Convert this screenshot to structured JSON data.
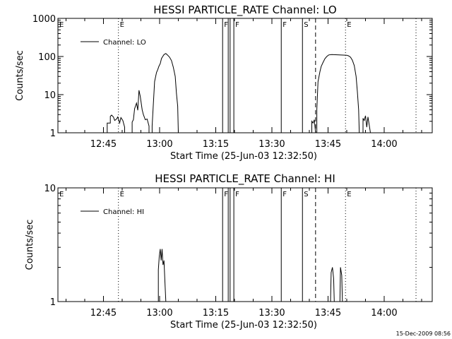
{
  "footer_date": "15-Dec-2009 08:56",
  "chart_data": [
    {
      "type": "line",
      "title": "HESSI PARTICLE_RATE Channel: LO",
      "xlabel": "Start Time (25-Jun-03 12:32:50)",
      "ylabel": "Counts/sec",
      "yscale": "log",
      "xlim": [
        "12:32:50",
        "14:12:50"
      ],
      "ylim": [
        1,
        1000
      ],
      "x_ticks": [
        "12:45",
        "13:00",
        "13:15",
        "13:30",
        "13:45",
        "14:00"
      ],
      "y_ticks": [
        "1",
        "10",
        "100",
        "1000"
      ],
      "legend": {
        "position": "top-left",
        "entries": [
          "Channel: LO"
        ]
      },
      "series": [
        {
          "name": "Channel: LO",
          "points": [
            [
              "12:46:00",
              1
            ],
            [
              "12:46:00",
              1.8
            ],
            [
              "12:46:50",
              1.8
            ],
            [
              "12:46:50",
              2.7
            ],
            [
              "12:47:10",
              2.9
            ],
            [
              "12:47:40",
              2.6
            ],
            [
              "12:48:00",
              2.1
            ],
            [
              "12:48:30",
              2.3
            ],
            [
              "12:48:50",
              2.6
            ],
            [
              "12:49:20",
              1.8
            ],
            [
              "12:49:40",
              2.5
            ],
            [
              "12:50:10",
              2.1
            ],
            [
              "12:50:40",
              1.4
            ],
            [
              "12:50:40",
              1
            ],
            [
              "12:52:40",
              1
            ],
            [
              "12:52:40",
              1.9
            ],
            [
              "12:53:00",
              2.2
            ],
            [
              "12:53:20",
              4.3
            ],
            [
              "12:53:50",
              6
            ],
            [
              "12:54:10",
              3.9
            ],
            [
              "12:54:30",
              13
            ],
            [
              "12:54:50",
              9
            ],
            [
              "12:55:20",
              4
            ],
            [
              "12:55:40",
              3
            ],
            [
              "12:56:10",
              2.2
            ],
            [
              "12:56:40",
              2.3
            ],
            [
              "12:57:10",
              1.5
            ],
            [
              "12:57:10",
              1
            ],
            [
              "12:58:00",
              1
            ],
            [
              "12:58:00",
              1.5
            ],
            [
              "12:58:20",
              6
            ],
            [
              "12:58:40",
              22
            ],
            [
              "12:59:10",
              38
            ],
            [
              "12:59:30",
              45
            ],
            [
              "12:59:50",
              56
            ],
            [
              "13:00:10",
              65
            ],
            [
              "13:00:30",
              88
            ],
            [
              "13:00:50",
              100
            ],
            [
              "13:01:10",
              112
            ],
            [
              "13:01:40",
              120
            ],
            [
              "13:02:10",
              108
            ],
            [
              "13:02:40",
              96
            ],
            [
              "13:03:10",
              78
            ],
            [
              "13:03:40",
              52
            ],
            [
              "13:04:10",
              30
            ],
            [
              "13:04:30",
              11
            ],
            [
              "13:04:50",
              5
            ],
            [
              "13:05:00",
              1
            ],
            [
              "13:40:40",
              1
            ],
            [
              "13:40:40",
              2
            ],
            [
              "13:41:00",
              1.8
            ],
            [
              "13:41:20",
              2.2
            ],
            [
              "13:41:40",
              1
            ],
            [
              "13:42:00",
              1
            ],
            [
              "13:42:00",
              4
            ],
            [
              "13:42:20",
              22
            ],
            [
              "13:42:50",
              40
            ],
            [
              "13:43:10",
              55
            ],
            [
              "13:43:40",
              70
            ],
            [
              "13:44:10",
              88
            ],
            [
              "13:44:40",
              100
            ],
            [
              "13:45:10",
              110
            ],
            [
              "13:46:00",
              112
            ],
            [
              "13:48:00",
              110
            ],
            [
              "13:50:00",
              108
            ],
            [
              "13:50:30",
              104
            ],
            [
              "13:51:00",
              96
            ],
            [
              "13:51:30",
              80
            ],
            [
              "13:52:00",
              58
            ],
            [
              "13:52:30",
              30
            ],
            [
              "13:52:50",
              12
            ],
            [
              "13:53:10",
              4
            ],
            [
              "13:53:20",
              1
            ],
            [
              "13:54:20",
              1
            ],
            [
              "13:54:20",
              2.4
            ],
            [
              "13:54:40",
              2.1
            ],
            [
              "13:55:00",
              2.8
            ],
            [
              "13:55:20",
              1.4
            ],
            [
              "13:55:40",
              2.6
            ],
            [
              "13:56:00",
              1.6
            ],
            [
              "13:56:20",
              1
            ]
          ]
        }
      ],
      "markers": {
        "solid": [
          {
            "x": "13:16:50",
            "label": "F"
          },
          {
            "x": "13:18:20",
            "label": ""
          },
          {
            "x": "13:18:50",
            "label": ""
          },
          {
            "x": "13:19:50",
            "label": "F"
          },
          {
            "x": "13:32:30",
            "label": "F"
          },
          {
            "x": "13:38:10",
            "label": "S"
          }
        ],
        "dashed": [
          {
            "x": "13:41:40",
            "label": ""
          }
        ],
        "dotted": [
          {
            "x": "12:49:00",
            "label": "E"
          },
          {
            "x": "13:49:40",
            "label": "E"
          },
          {
            "x": "14:08:30",
            "label": ""
          }
        ]
      },
      "edge_labels": [
        "E"
      ]
    },
    {
      "type": "line",
      "title": "HESSI PARTICLE_RATE Channel: HI",
      "xlabel": "Start Time (25-Jun-03 12:32:50)",
      "ylabel": "Counts/sec",
      "yscale": "log",
      "xlim": [
        "12:32:50",
        "14:12:50"
      ],
      "ylim": [
        1,
        10
      ],
      "x_ticks": [
        "12:45",
        "13:00",
        "13:15",
        "13:30",
        "13:45",
        "14:00"
      ],
      "y_ticks": [
        "1",
        "10"
      ],
      "legend": {
        "position": "top-left",
        "entries": [
          "Channel: HI"
        ]
      },
      "series": [
        {
          "name": "Channel: HI",
          "points": [
            [
              "12:59:40",
              1
            ],
            [
              "12:59:40",
              1.9
            ],
            [
              "12:59:55",
              2.5
            ],
            [
              "13:00:10",
              2.9
            ],
            [
              "13:00:25",
              2.3
            ],
            [
              "13:00:40",
              2.9
            ],
            [
              "13:00:55",
              2.1
            ],
            [
              "13:01:10",
              2.3
            ],
            [
              "13:01:25",
              1.5
            ],
            [
              "13:01:40",
              1
            ],
            [
              "13:45:40",
              1
            ],
            [
              "13:45:50",
              1.8
            ],
            [
              "13:46:10",
              2
            ],
            [
              "13:46:30",
              1.6
            ],
            [
              "13:46:40",
              1
            ],
            [
              "13:48:10",
              1
            ],
            [
              "13:48:20",
              2
            ],
            [
              "13:48:40",
              1.7
            ],
            [
              "13:48:50",
              1
            ]
          ]
        }
      ],
      "markers": {
        "solid": [
          {
            "x": "13:16:50",
            "label": "F"
          },
          {
            "x": "13:18:20",
            "label": ""
          },
          {
            "x": "13:18:50",
            "label": ""
          },
          {
            "x": "13:19:50",
            "label": "F"
          },
          {
            "x": "13:32:30",
            "label": "F"
          },
          {
            "x": "13:38:10",
            "label": "S"
          }
        ],
        "dashed": [
          {
            "x": "13:41:40",
            "label": ""
          }
        ],
        "dotted": [
          {
            "x": "12:49:00",
            "label": "E"
          },
          {
            "x": "13:49:40",
            "label": "E"
          },
          {
            "x": "14:08:30",
            "label": ""
          }
        ]
      },
      "edge_labels": [
        "E"
      ]
    }
  ]
}
